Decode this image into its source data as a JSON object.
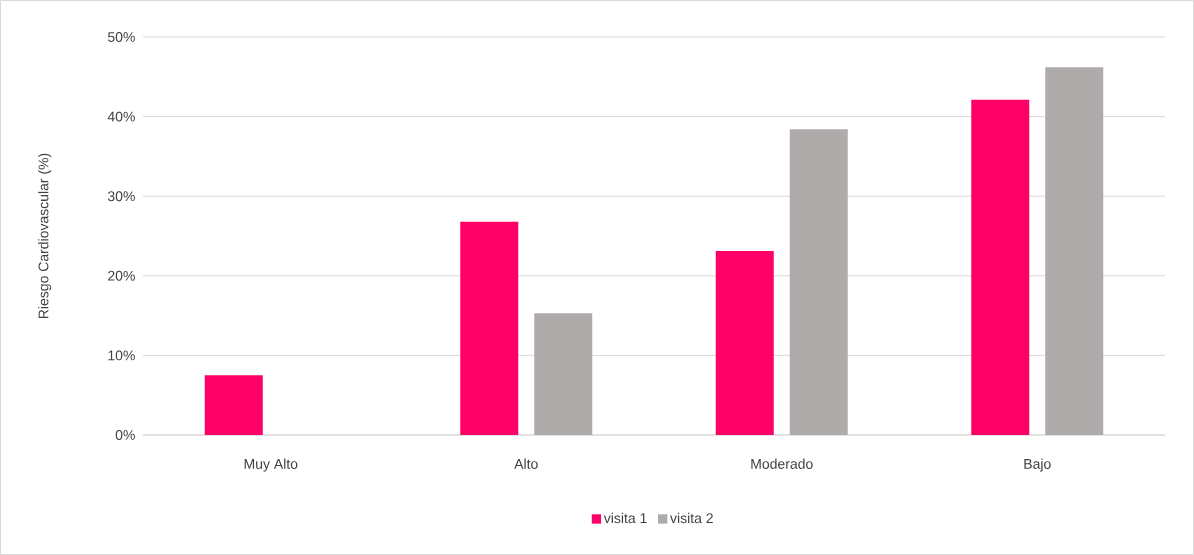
{
  "chart_data": {
    "type": "bar",
    "ylabel": "Riesgo Cardiovascular (%)",
    "categories": [
      "Muy Alto",
      "Alto",
      "Moderado",
      "Bajo"
    ],
    "series": [
      {
        "name": "visita 1",
        "color": "#ff0066",
        "values": [
          7.5,
          26.8,
          23.1,
          42.1
        ]
      },
      {
        "name": "visita 2",
        "color": "#afabaa",
        "values": [
          0,
          15.3,
          38.4,
          46.2
        ]
      }
    ],
    "ylim": [
      0,
      50
    ],
    "yticks": [
      {
        "value": 0,
        "label": "0%"
      },
      {
        "value": 10,
        "label": "10%"
      },
      {
        "value": 20,
        "label": "20%"
      },
      {
        "value": 30,
        "label": "30%"
      },
      {
        "value": 40,
        "label": "40%"
      },
      {
        "value": 50,
        "label": "50%"
      }
    ],
    "grid": "y",
    "legend": "bottom"
  }
}
